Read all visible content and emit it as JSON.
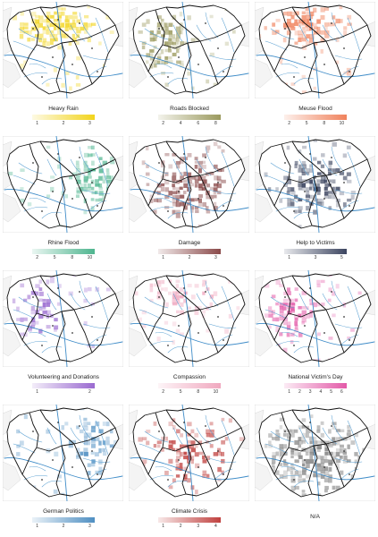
{
  "panels": [
    {
      "title": "Heavy Rain",
      "color": "#f2d41c",
      "ticks": [
        "1",
        "2",
        "3"
      ],
      "region": "north",
      "density": 0.75
    },
    {
      "title": "Roads Blocked",
      "color": "#9b9a5e",
      "ticks": [
        "2",
        "4",
        "6",
        "8"
      ],
      "region": "west",
      "density": 0.55
    },
    {
      "title": "Meuse Flood",
      "color": "#f0825c",
      "ticks": [
        "2",
        "5",
        "8",
        "10"
      ],
      "region": "north",
      "density": 0.7
    },
    {
      "title": "Rhine Flood",
      "color": "#4fb58f",
      "ticks": [
        "2",
        "5",
        "8",
        "10"
      ],
      "region": "east",
      "density": 0.6
    },
    {
      "title": "Damage",
      "color": "#8a4a4a",
      "ticks": [
        "1",
        "2",
        "3"
      ],
      "region": "center",
      "density": 0.55
    },
    {
      "title": "Help to Victims",
      "color": "#3c4560",
      "ticks": [
        "1",
        "3",
        "5"
      ],
      "region": "center",
      "density": 0.6
    },
    {
      "title": "Volunteering and Donations",
      "color": "#9a6ad0",
      "ticks": [
        "1",
        "2"
      ],
      "region": "west",
      "density": 0.35
    },
    {
      "title": "Compassion",
      "color": "#f0a8bf",
      "ticks": [
        "2",
        "5",
        "8",
        "10"
      ],
      "region": "north",
      "density": 0.45
    },
    {
      "title": "National Victim's Day",
      "color": "#e35aa8",
      "ticks": [
        "1",
        "2",
        "3",
        "4",
        "5",
        "6"
      ],
      "region": "west",
      "density": 0.55
    },
    {
      "title": "German Politics",
      "color": "#4f8fc2",
      "ticks": [
        "1",
        "2",
        "3"
      ],
      "region": "east",
      "density": 0.4
    },
    {
      "title": "Climate Crisis",
      "color": "#c0413f",
      "ticks": [
        "1",
        "2",
        "3",
        "4"
      ],
      "region": "center",
      "density": 0.45
    },
    {
      "title": "N/A",
      "color": "#8a8a8a",
      "ticks": [],
      "region": "all",
      "density": 0.6
    }
  ]
}
